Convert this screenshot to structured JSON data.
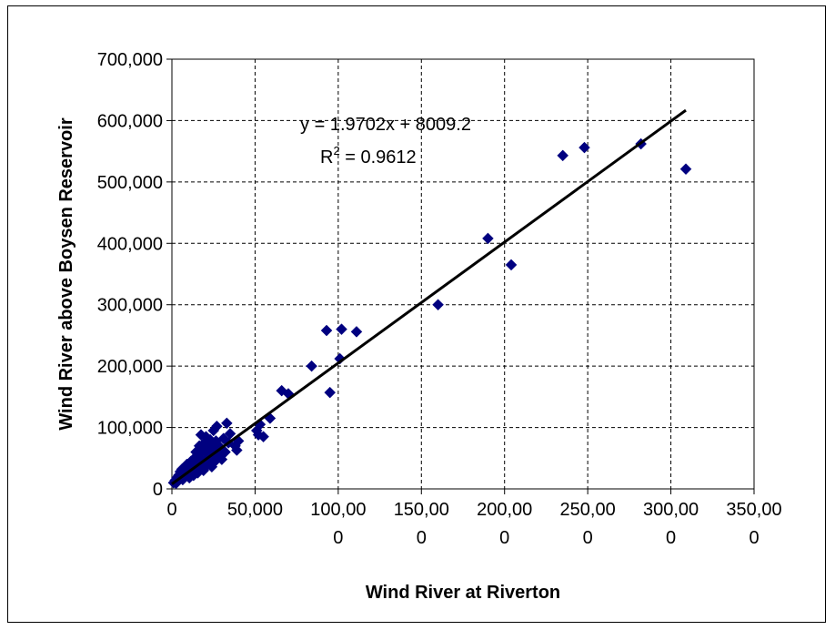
{
  "chart_data": {
    "type": "scatter",
    "title": "",
    "xlabel": "Wind River at Riverton",
    "ylabel": "Wind River above Boysen Reservoir",
    "xlim": [
      0,
      350000
    ],
    "ylim": [
      0,
      700000
    ],
    "x_ticks": [
      [
        "0"
      ],
      [
        "50,000"
      ],
      [
        "100,00",
        "0"
      ],
      [
        "150,00",
        "0"
      ],
      [
        "200,00",
        "0"
      ],
      [
        "250,00",
        "0"
      ],
      [
        "300,00",
        "0"
      ],
      [
        "350,00",
        "0"
      ]
    ],
    "x_tick_values": [
      0,
      50000,
      100000,
      150000,
      200000,
      250000,
      300000,
      350000
    ],
    "y_ticks": [
      "0",
      "100,000",
      "200,000",
      "300,000",
      "400,000",
      "500,000",
      "600,000",
      "700,000"
    ],
    "y_tick_values": [
      0,
      100000,
      200000,
      300000,
      400000,
      500000,
      600000,
      700000
    ],
    "grid": true,
    "marker_color": "#000080",
    "trendline": {
      "slope": 1.9702,
      "intercept": 8009.2,
      "x_range": [
        0,
        309000
      ],
      "color": "#000000",
      "equation_label": "y = 1.9702x + 8009.2",
      "r2_prefix": "R",
      "r2_sup": "2",
      "r2_suffix": " = 0.9612"
    },
    "series": [
      {
        "points": [
          [
            1000,
            10000
          ],
          [
            2000,
            14000
          ],
          [
            2500,
            9000
          ],
          [
            3000,
            18000
          ],
          [
            3500,
            12000
          ],
          [
            4000,
            22000
          ],
          [
            4500,
            16000
          ],
          [
            5000,
            28000
          ],
          [
            5500,
            20000
          ],
          [
            6000,
            32000
          ],
          [
            6500,
            15000
          ],
          [
            7000,
            26000
          ],
          [
            7500,
            35000
          ],
          [
            8000,
            22000
          ],
          [
            8500,
            30000
          ],
          [
            9000,
            40000
          ],
          [
            9500,
            25000
          ],
          [
            10000,
            34000
          ],
          [
            10500,
            18000
          ],
          [
            11000,
            28000
          ],
          [
            11500,
            45000
          ],
          [
            12000,
            30000
          ],
          [
            12500,
            38000
          ],
          [
            13000,
            22000
          ],
          [
            13500,
            50000
          ],
          [
            14000,
            32000
          ],
          [
            14500,
            60000
          ],
          [
            15000,
            40000
          ],
          [
            15500,
            26000
          ],
          [
            16000,
            55000
          ],
          [
            16500,
            70000
          ],
          [
            17000,
            35000
          ],
          [
            17500,
            88000
          ],
          [
            18000,
            45000
          ],
          [
            18500,
            62000
          ],
          [
            19000,
            30000
          ],
          [
            19500,
            75000
          ],
          [
            20000,
            48000
          ],
          [
            20500,
            85000
          ],
          [
            21000,
            38000
          ],
          [
            21500,
            58000
          ],
          [
            22000,
            65000
          ],
          [
            22500,
            42000
          ],
          [
            23000,
            80000
          ],
          [
            23500,
            52000
          ],
          [
            24000,
            36000
          ],
          [
            24500,
            70000
          ],
          [
            25000,
            95000
          ],
          [
            25500,
            60000
          ],
          [
            26000,
            45000
          ],
          [
            26500,
            78000
          ],
          [
            27000,
            102000
          ],
          [
            28000,
            55000
          ],
          [
            29000,
            68000
          ],
          [
            30000,
            48000
          ],
          [
            31000,
            82000
          ],
          [
            32000,
            60000
          ],
          [
            33000,
            107000
          ],
          [
            34000,
            75000
          ],
          [
            35000,
            90000
          ],
          [
            38000,
            70000
          ],
          [
            39000,
            63000
          ],
          [
            40000,
            78000
          ],
          [
            51000,
            95000
          ],
          [
            52000,
            88000
          ],
          [
            53000,
            105000
          ],
          [
            55000,
            85000
          ],
          [
            59000,
            115000
          ],
          [
            66000,
            160000
          ],
          [
            70000,
            155000
          ],
          [
            84000,
            200000
          ],
          [
            93000,
            258000
          ],
          [
            95000,
            157000
          ],
          [
            101000,
            212000
          ],
          [
            102000,
            260000
          ],
          [
            111000,
            256000
          ],
          [
            160000,
            300000
          ],
          [
            190000,
            408000
          ],
          [
            204000,
            365000
          ],
          [
            235000,
            543000
          ],
          [
            248000,
            556000
          ],
          [
            282000,
            562000
          ],
          [
            309000,
            521000
          ]
        ]
      }
    ]
  }
}
